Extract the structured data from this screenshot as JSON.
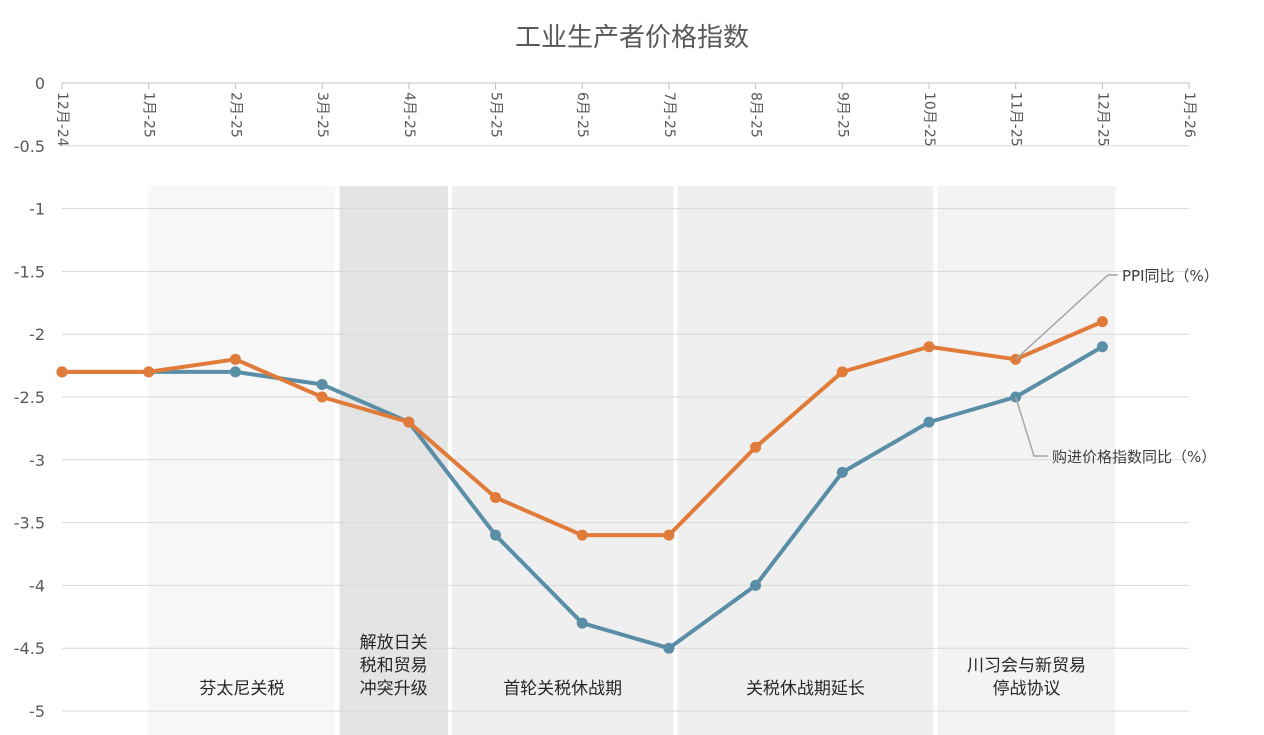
{
  "chart_data": {
    "type": "line",
    "title": "工业生产者价格指数",
    "xlabel": "",
    "ylabel": "",
    "ylim": [
      -5,
      0
    ],
    "yticks": [
      0,
      -0.5,
      -1,
      -1.5,
      -2,
      -2.5,
      -3,
      -3.5,
      -4,
      -4.5,
      -5
    ],
    "ytick_labels": [
      "0",
      "-0.5",
      "-1",
      "-1.5",
      "-2",
      "-2.5",
      "-3",
      "-3.5",
      "-4",
      "-4.5",
      "-5"
    ],
    "x_axis_position": "top",
    "xtick_labels": [
      "12月-24",
      "1月-25",
      "2月-25",
      "3月-25",
      "4月-25",
      "5月-25",
      "6月-25",
      "7月-25",
      "8月-25",
      "9月-25",
      "10月-25",
      "11月-25",
      "12月-25",
      "1月-26"
    ],
    "grid": true,
    "categories": [
      "12月-24",
      "1月-25",
      "2月-25",
      "3月-25",
      "4月-25",
      "5月-25",
      "6月-25",
      "7月-25",
      "8月-25",
      "9月-25",
      "10月-25",
      "11月-25",
      "12月-25"
    ],
    "series": [
      {
        "name": "PPI同比（%）",
        "color": "#E07B39",
        "values": [
          -2.3,
          -2.3,
          -2.2,
          -2.5,
          -2.7,
          -3.3,
          -3.6,
          -3.6,
          -2.9,
          -2.3,
          -2.1,
          -2.2,
          -1.9
        ]
      },
      {
        "name": "购进价格指数同比（%）",
        "color": "#5A8EA6",
        "values": [
          -2.3,
          -2.3,
          -2.3,
          -2.4,
          -2.7,
          -3.6,
          -4.3,
          -4.5,
          -4.0,
          -3.1,
          -2.7,
          -2.5,
          -2.1
        ]
      }
    ],
    "periods": [
      {
        "label_lines": [
          "芬太尼关税"
        ],
        "start": 1,
        "end": 3.15,
        "fill": "#f7f7f7"
      },
      {
        "label_lines": [
          "解放日关",
          "税和贸易",
          "冲突升级"
        ],
        "start": 3.2,
        "end": 4.45,
        "fill": "#e4e4e4"
      },
      {
        "label_lines": [
          "首轮关税休战期"
        ],
        "start": 4.5,
        "end": 7.05,
        "fill": "#efefef"
      },
      {
        "label_lines": [
          "关税休战期延长"
        ],
        "start": 7.1,
        "end": 10.05,
        "fill": "#efefef"
      },
      {
        "label_lines": [
          "川习会与新贸易",
          "停战协议"
        ],
        "start": 10.1,
        "end": 12.15,
        "fill": "#f3f3f3"
      }
    ],
    "legend": "callouts-right"
  }
}
